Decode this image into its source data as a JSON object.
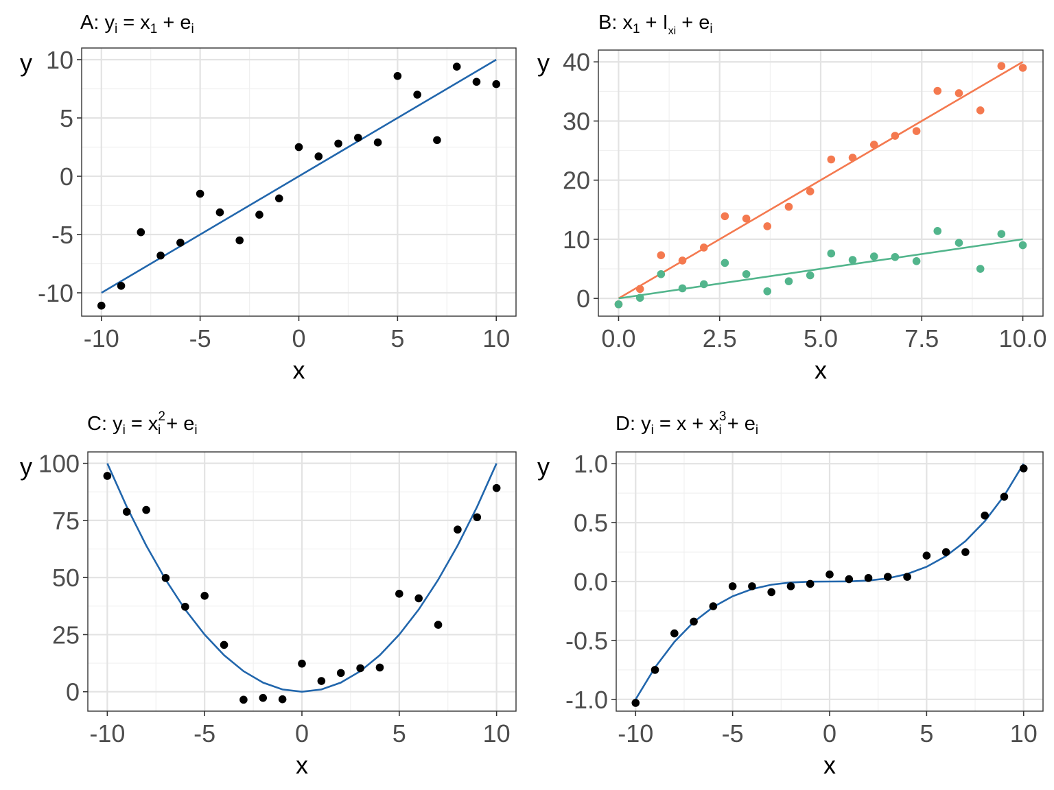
{
  "chart_data": [
    {
      "type": "scatter",
      "title": "A: yi = x1 + ei",
      "title_parts": {
        "prefix": "A: ",
        "y": "y",
        "y_sub": "i",
        "eq": " = x",
        "x_sub": "1",
        "plus": " + e",
        "e_sub": "i"
      },
      "xlabel": "x",
      "ylabel": "y",
      "xlim": [
        -11,
        11
      ],
      "ylim": [
        -12,
        11
      ],
      "xticks": [
        -10,
        -5,
        0,
        5,
        10
      ],
      "xtick_labels": [
        "-10",
        "-5",
        "0",
        "5",
        "10"
      ],
      "yticks": [
        -10,
        -5,
        0,
        5,
        10
      ],
      "ytick_labels": [
        "-10",
        "-5",
        "0",
        "5",
        "10"
      ],
      "grid": true,
      "series": [
        {
          "kind": "points",
          "color": "#000000",
          "x": [
            -10,
            -9,
            -8,
            -7,
            -6,
            -5,
            -4,
            -3,
            -2,
            -1,
            0,
            1,
            2,
            3,
            4,
            5,
            6,
            7,
            8,
            9,
            10
          ],
          "y": [
            -11.1,
            -9.4,
            -4.8,
            -6.8,
            -5.7,
            -1.5,
            -3.1,
            -5.5,
            -3.3,
            -1.9,
            2.5,
            1.7,
            2.8,
            3.3,
            2.9,
            8.6,
            7.0,
            3.1,
            9.4,
            8.1,
            7.9
          ]
        },
        {
          "kind": "line",
          "color": "#2166ac",
          "x": [
            -10,
            10
          ],
          "y": [
            -10,
            10
          ]
        }
      ]
    },
    {
      "type": "scatter",
      "title": "B: x1 + Ixi + ei",
      "title_parts": {
        "prefix": "B: ",
        "x": "x",
        "x_sub": "1",
        "plus1": " + I",
        "i_sub": "xi",
        "plus2": " + e",
        "e_sub": "i"
      },
      "xlabel": "x",
      "ylabel": "y",
      "xlim": [
        -0.5,
        10.5
      ],
      "ylim": [
        -3,
        42
      ],
      "xticks": [
        0,
        2.5,
        5,
        7.5,
        10
      ],
      "xtick_labels": [
        "0.0",
        "2.5",
        "5.0",
        "7.5",
        "10.0"
      ],
      "yticks": [
        0,
        10,
        20,
        30,
        40
      ],
      "ytick_labels": [
        "0",
        "10",
        "20",
        "30",
        "40"
      ],
      "grid": true,
      "series": [
        {
          "kind": "points",
          "color": "#f4794f",
          "x": [
            0,
            0.53,
            1.05,
            1.58,
            2.11,
            2.63,
            3.16,
            3.68,
            4.21,
            4.74,
            5.26,
            5.79,
            6.32,
            6.84,
            7.37,
            7.89,
            8.42,
            8.95,
            9.47,
            10
          ],
          "y": [
            -1.0,
            1.6,
            7.3,
            6.4,
            8.6,
            13.9,
            13.5,
            12.2,
            15.5,
            18.1,
            23.5,
            23.8,
            26.0,
            27.5,
            28.3,
            35.1,
            34.7,
            31.8,
            39.3,
            39.0
          ]
        },
        {
          "kind": "points",
          "color": "#52b58c",
          "x": [
            0,
            0.53,
            1.05,
            1.58,
            2.11,
            2.63,
            3.16,
            3.68,
            4.21,
            4.74,
            5.26,
            5.79,
            6.32,
            6.84,
            7.37,
            7.89,
            8.42,
            8.95,
            9.47,
            10
          ],
          "y": [
            -1.0,
            0.1,
            4.1,
            1.7,
            2.4,
            6.0,
            4.1,
            1.2,
            2.9,
            3.9,
            7.6,
            6.5,
            7.1,
            7.0,
            6.3,
            11.4,
            9.4,
            5.0,
            10.9,
            9.0
          ]
        },
        {
          "kind": "line",
          "color": "#f4794f",
          "x": [
            0,
            10
          ],
          "y": [
            0,
            40
          ]
        },
        {
          "kind": "line",
          "color": "#52b58c",
          "x": [
            0,
            10
          ],
          "y": [
            0,
            10
          ]
        }
      ]
    },
    {
      "type": "scatter",
      "title": "C: yi = xi2 + ei",
      "title_parts": {
        "prefix": "C: ",
        "y": "y",
        "y_sub": "i",
        "eq": " = x",
        "x_sup": "2",
        "x_sub": "i",
        "plus": " + e",
        "e_sub": "i"
      },
      "xlabel": "x",
      "ylabel": "y",
      "xlim": [
        -11,
        11
      ],
      "ylim": [
        -8.5,
        105
      ],
      "xticks": [
        -10,
        -5,
        0,
        5,
        10
      ],
      "xtick_labels": [
        "-10",
        "-5",
        "0",
        "5",
        "10"
      ],
      "yticks": [
        0,
        25,
        50,
        75,
        100
      ],
      "ytick_labels": [
        "0",
        "25",
        "50",
        "75",
        "100"
      ],
      "grid": true,
      "series": [
        {
          "kind": "points",
          "color": "#000000",
          "x": [
            -10,
            -9,
            -8,
            -7,
            -6,
            -5,
            -4,
            -3,
            -2,
            -1,
            0,
            1,
            2,
            3,
            4,
            5,
            6,
            7,
            8,
            9,
            10
          ],
          "y": [
            94.5,
            78.8,
            79.6,
            49.8,
            37.2,
            42.0,
            20.5,
            -3.5,
            -2.7,
            -3.3,
            12.3,
            4.7,
            8.2,
            10.3,
            10.6,
            42.9,
            40.9,
            29.3,
            71.0,
            76.4,
            89.2
          ]
        },
        {
          "kind": "line",
          "color": "#2166ac",
          "x": [
            -10,
            -9,
            -8,
            -7,
            -6,
            -5,
            -4,
            -3,
            -2,
            -1,
            0,
            1,
            2,
            3,
            4,
            5,
            6,
            7,
            8,
            9,
            10
          ],
          "y": [
            100,
            81,
            64,
            49,
            36,
            25,
            16,
            9,
            4,
            1,
            0,
            1,
            4,
            9,
            16,
            25,
            36,
            49,
            64,
            81,
            100
          ]
        }
      ]
    },
    {
      "type": "scatter",
      "title": "D: yi = x + xi3 + ei",
      "title_parts": {
        "prefix": "D: ",
        "y": "y",
        "y_sub": "i",
        "eq": " = x + x",
        "x_sup": "3",
        "x_sub": "i",
        "plus": " + e",
        "e_sub": "i"
      },
      "xlabel": "x",
      "ylabel": "y",
      "xlim": [
        -11,
        11
      ],
      "ylim": [
        -1.1,
        1.1
      ],
      "xticks": [
        -10,
        -5,
        0,
        5,
        10
      ],
      "xtick_labels": [
        "-10",
        "-5",
        "0",
        "5",
        "10"
      ],
      "yticks": [
        -1,
        -0.5,
        0,
        0.5,
        1
      ],
      "ytick_labels": [
        "-1.0",
        "-0.5",
        "0.0",
        "0.5",
        "1.0"
      ],
      "grid": true,
      "series": [
        {
          "kind": "points",
          "color": "#000000",
          "x": [
            -10,
            -9,
            -8,
            -7,
            -6,
            -5,
            -4,
            -3,
            -2,
            -1,
            0,
            1,
            2,
            3,
            4,
            5,
            6,
            7,
            8,
            9,
            10
          ],
          "y": [
            -1.03,
            -0.75,
            -0.44,
            -0.34,
            -0.21,
            -0.04,
            -0.04,
            -0.09,
            -0.04,
            -0.02,
            0.06,
            0.02,
            0.03,
            0.04,
            0.04,
            0.22,
            0.25,
            0.25,
            0.56,
            0.72,
            0.96
          ]
        },
        {
          "kind": "line",
          "color": "#2166ac",
          "x": [
            -10,
            -9,
            -8,
            -7,
            -6,
            -5,
            -4,
            -3,
            -2,
            -1,
            0,
            1,
            2,
            3,
            4,
            5,
            6,
            7,
            8,
            9,
            10
          ],
          "y": [
            -1.0,
            -0.729,
            -0.512,
            -0.343,
            -0.216,
            -0.125,
            -0.064,
            -0.027,
            -0.008,
            -0.001,
            0,
            0.001,
            0.008,
            0.027,
            0.064,
            0.125,
            0.216,
            0.343,
            0.512,
            0.729,
            1.0
          ]
        }
      ]
    }
  ]
}
